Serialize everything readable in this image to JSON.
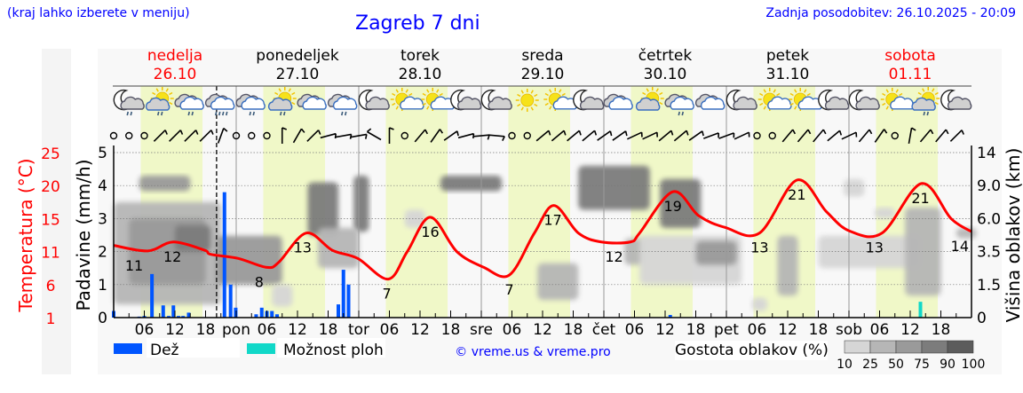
{
  "header": {
    "hint": "(kraj lahko izberete v meniju)",
    "title": "Zagreb 7 dni",
    "updated": "Zadnja posodobitev: 26.10.2025 - 20:09"
  },
  "colors": {
    "temperature": "#ff0000",
    "rain": "#0055ff",
    "showers": "#11d8c8",
    "daylight": "#f0f8c8",
    "night": "#f8f8f8",
    "weekend": "#ff0000",
    "link": "#0000ff"
  },
  "chart_data": {
    "type": "meteogram",
    "hours_span": 168,
    "now_marker_hour": 20.15,
    "daylight_hours": [
      5.3,
      17.4
    ],
    "days": [
      {
        "name": "nedelja",
        "date": "26.10",
        "abbr": "",
        "weekend": true
      },
      {
        "name": "ponedeljek",
        "date": "27.10",
        "abbr": "pon",
        "weekend": false
      },
      {
        "name": "torek",
        "date": "28.10",
        "abbr": "tor",
        "weekend": false
      },
      {
        "name": "sreda",
        "date": "29.10",
        "abbr": "sre",
        "weekend": false
      },
      {
        "name": "četrtek",
        "date": "30.10",
        "abbr": "čet",
        "weekend": false
      },
      {
        "name": "petek",
        "date": "31.10",
        "abbr": "pet",
        "weekend": false
      },
      {
        "name": "sobota",
        "date": "01.11",
        "abbr": "sob",
        "weekend": true
      }
    ],
    "hour_ticks": [
      "06",
      "12",
      "18"
    ],
    "axes": {
      "temperature": {
        "label": "Temperatura (°C)",
        "ticks": [
          "1",
          "6",
          "11",
          "15",
          "20",
          "25"
        ],
        "range": [
          1,
          25
        ]
      },
      "precipitation": {
        "label": "Padavine (mm/h)",
        "ticks": [
          "0",
          "1",
          "2",
          "3",
          "4",
          "5"
        ],
        "range": [
          0,
          5
        ]
      },
      "cloud_height": {
        "label": "Višina oblakov (km)",
        "ticks": [
          "0",
          "1.5",
          "3.5",
          "6.0",
          "9.0",
          "14"
        ]
      }
    },
    "temperature": [
      [
        0,
        11.5
      ],
      [
        6.7,
        10.7
      ],
      [
        11.7,
        12.0
      ],
      [
        17.8,
        10.8
      ],
      [
        19,
        10.2
      ],
      [
        24.4,
        9.6
      ],
      [
        30,
        8.3
      ],
      [
        32.4,
        9.1
      ],
      [
        37.7,
        13.3
      ],
      [
        42.8,
        10.8
      ],
      [
        47.8,
        9.6
      ],
      [
        53.8,
        6.6
      ],
      [
        57.5,
        10.6
      ],
      [
        62,
        15.6
      ],
      [
        67.2,
        10.6
      ],
      [
        72.5,
        8.3
      ],
      [
        77.5,
        7.2
      ],
      [
        82.4,
        13.3
      ],
      [
        86.2,
        17.3
      ],
      [
        91,
        13.3
      ],
      [
        95.5,
        12.0
      ],
      [
        101.2,
        12.0
      ],
      [
        103,
        13.3
      ],
      [
        109.5,
        19.3
      ],
      [
        114.6,
        15.8
      ],
      [
        119.8,
        14.1
      ],
      [
        126.5,
        13.3
      ],
      [
        133.8,
        21.0
      ],
      [
        139.6,
        16.4
      ],
      [
        144.1,
        13.6
      ],
      [
        150.5,
        13.3
      ],
      [
        158.2,
        20.5
      ],
      [
        164,
        15.4
      ],
      [
        168.9,
        13.5
      ]
    ],
    "temperature_labels": [
      [
        4,
        11
      ],
      [
        11.5,
        12
      ],
      [
        28.5,
        8
      ],
      [
        37,
        13
      ],
      [
        53.5,
        7
      ],
      [
        62,
        16
      ],
      [
        77.5,
        7
      ],
      [
        86,
        17
      ],
      [
        98,
        12
      ],
      [
        109.5,
        19
      ],
      [
        126.5,
        13
      ],
      [
        133.8,
        21
      ],
      [
        149,
        13
      ],
      [
        158,
        21
      ],
      [
        168,
        14
      ]
    ],
    "rain": [
      [
        0,
        0.2
      ],
      [
        5,
        0.03
      ],
      [
        6,
        0.05
      ],
      [
        7.5,
        1.32
      ],
      [
        9.7,
        0.37
      ],
      [
        10.8,
        0.05
      ],
      [
        11.7,
        0.37
      ],
      [
        12.7,
        0.05
      ],
      [
        13.6,
        0.05
      ],
      [
        14.7,
        0.15
      ],
      [
        21.7,
        3.8
      ],
      [
        22.9,
        1.0
      ],
      [
        23.9,
        0.3
      ],
      [
        27.9,
        0.1
      ],
      [
        29,
        0.3
      ],
      [
        30,
        0.2
      ],
      [
        31,
        0.2
      ],
      [
        32,
        0.1
      ],
      [
        44,
        0.4
      ],
      [
        45,
        1.45
      ],
      [
        46,
        1.0
      ],
      [
        109,
        0.08
      ],
      [
        158,
        0.05
      ]
    ],
    "showers": [
      [
        158,
        0.48
      ]
    ],
    "cloud_cover": [
      {
        "h": [
          0,
          21
        ],
        "km": [
          0.6,
          7.5
        ],
        "density": 50
      },
      {
        "h": [
          3,
          18
        ],
        "km": [
          1.5,
          6.0
        ],
        "density": 75
      },
      {
        "h": [
          5,
          15
        ],
        "km": [
          8.5,
          10.5
        ],
        "density": 75
      },
      {
        "h": [
          12,
          19
        ],
        "km": [
          3.5,
          5.5
        ],
        "density": 90
      },
      {
        "h": [
          20,
          33
        ],
        "km": [
          1.5,
          4.7
        ],
        "density": 75
      },
      {
        "h": [
          31,
          35
        ],
        "km": [
          0.5,
          1.5
        ],
        "density": 25
      },
      {
        "h": [
          38,
          44
        ],
        "km": [
          4.7,
          9.5
        ],
        "density": 90
      },
      {
        "h": [
          47,
          50
        ],
        "km": [
          5.0,
          10.5
        ],
        "density": 90
      },
      {
        "h": [
          40,
          48
        ],
        "km": [
          2.5,
          5.3
        ],
        "density": 50
      },
      {
        "h": [
          57,
          61
        ],
        "km": [
          5.3,
          6.8
        ],
        "density": 25
      },
      {
        "h": [
          64,
          76
        ],
        "km": [
          8.5,
          10.5
        ],
        "density": 90
      },
      {
        "h": [
          83,
          91
        ],
        "km": [
          0.8,
          2.8
        ],
        "density": 50
      },
      {
        "h": [
          91,
          105
        ],
        "km": [
          6.8,
          12.0
        ],
        "density": 90
      },
      {
        "h": [
          107,
          115
        ],
        "km": [
          5.3,
          10.0
        ],
        "density": 90
      },
      {
        "h": [
          100,
          104
        ],
        "km": [
          2.7,
          4.5
        ],
        "density": 50
      },
      {
        "h": [
          103,
          123
        ],
        "km": [
          1.5,
          4.7
        ],
        "density": 25
      },
      {
        "h": [
          114,
          122
        ],
        "km": [
          2.7,
          4.3
        ],
        "density": 75
      },
      {
        "h": [
          125,
          128
        ],
        "km": [
          0.3,
          0.9
        ],
        "density": 25
      },
      {
        "h": [
          130,
          134
        ],
        "km": [
          1.0,
          4.7
        ],
        "density": 50
      },
      {
        "h": [
          138,
          158
        ],
        "km": [
          2.5,
          4.7
        ],
        "density": 25
      },
      {
        "h": [
          143,
          147
        ],
        "km": [
          8.0,
          10.0
        ],
        "density": 25
      },
      {
        "h": [
          149,
          153
        ],
        "km": [
          6.0,
          7.0
        ],
        "density": 25
      },
      {
        "h": [
          155,
          162
        ],
        "km": [
          1.0,
          7.0
        ],
        "density": 50
      },
      {
        "h": [
          165,
          169
        ],
        "km": [
          4.5,
          5.3
        ],
        "density": 50
      }
    ],
    "weather_icons": [
      "night-cloud-rain",
      "sun-cloud-rain",
      "cloud-rain",
      "cloud-rain-heavy",
      "cloud-rain",
      "sun-cloud-rain",
      "cloud",
      "cloud-rain",
      "night-cloud",
      "sun-small-cloud",
      "sun-small-cloud",
      "night-cloud",
      "night-cloud",
      "sun",
      "sun-small-cloud",
      "night-cloud",
      "cloud",
      "sun-cloud",
      "cloud-rain",
      "cloud",
      "night-cloud",
      "sun-small-cloud",
      "sun-small-cloud",
      "night-cloud",
      "night-cloud",
      "sun-small-cloud",
      "sun-cloud-rain",
      "night-cloud"
    ],
    "wind_from_deg": [
      "calm",
      "calm",
      "calm",
      45,
      45,
      45,
      45,
      20,
      "calm",
      "calm",
      "calm",
      0,
      30,
      45,
      75,
      80,
      80,
      300,
      0,
      "calm",
      40,
      35,
      55,
      75,
      85,
      95,
      "calm",
      "calm",
      50,
      50,
      50,
      50,
      55,
      55,
      65,
      65,
      50,
      50,
      55,
      70,
      70,
      65,
      "calm",
      "calm",
      40,
      40,
      40,
      50,
      65,
      40,
      35,
      "calm",
      10,
      40,
      40,
      45
    ],
    "legend": {
      "rain": "Dež",
      "showers": "Možnost ploh",
      "credit": "© vreme.us & vreme.pro",
      "cloud_density_label": "Gostota oblakov (%)",
      "cloud_density_levels": [
        "10",
        "25",
        "50",
        "75",
        "90",
        "100"
      ],
      "cloud_density_colors": [
        "#d6d6d6",
        "#b6b6b6",
        "#9a9a9a",
        "#7c7c7c",
        "#5c5c5c"
      ]
    }
  }
}
